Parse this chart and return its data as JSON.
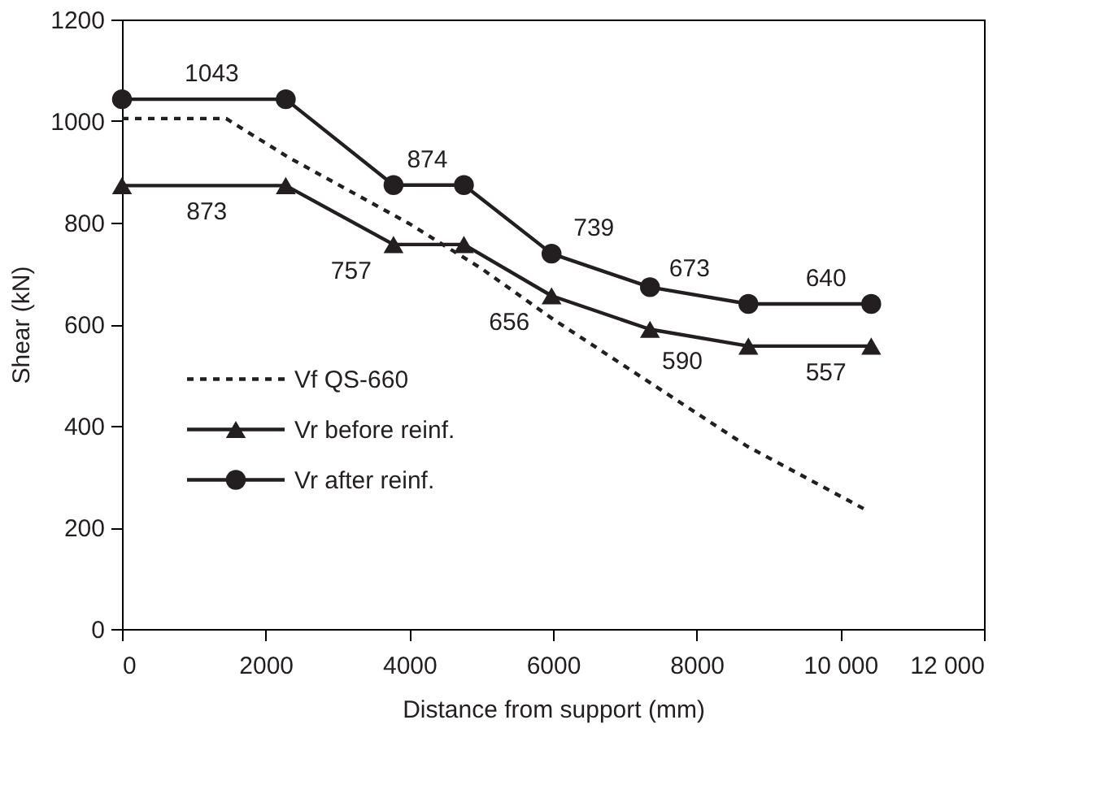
{
  "chart_data": {
    "type": "line",
    "xlabel": "Distance from support (mm)",
    "ylabel": "Shear (kN)",
    "xlim": [
      0,
      12000
    ],
    "ylim": [
      0,
      1200
    ],
    "xticks": [
      0,
      2000,
      4000,
      6000,
      8000,
      {
        "value": 10000,
        "label": "10 000"
      },
      {
        "value": 12000,
        "label": "12 000"
      }
    ],
    "yticks": [
      0,
      200,
      400,
      600,
      800,
      1000,
      1200
    ],
    "grid": false,
    "legend": "left",
    "series": [
      {
        "name": "Vf  QS-660",
        "color": "#231f20",
        "line_style": "dashed",
        "marker": "none",
        "x": [
          0,
          1450,
          2300,
          4000,
          5000,
          6000,
          7350,
          8700,
          10350
        ],
        "values": [
          1005,
          1005,
          930,
          798,
          710,
          610,
          485,
          360,
          235
        ]
      },
      {
        "name": "Vr before reinf.",
        "color": "#231f20",
        "line_style": "solid",
        "marker": "triangle",
        "x": [
          0,
          2280,
          3780,
          4760,
          5980,
          7350,
          8720,
          10430
        ],
        "values": [
          873,
          873,
          757,
          757,
          656,
          590,
          557,
          557
        ]
      },
      {
        "name": "Vr after reinf.",
        "color": "#231f20",
        "line_style": "solid",
        "marker": "circle",
        "x": [
          0,
          2280,
          3780,
          4760,
          5980,
          7350,
          8720,
          10430
        ],
        "values": [
          1043,
          1043,
          874,
          874,
          739,
          673,
          640,
          640
        ]
      }
    ],
    "annotations": [
      {
        "text": "1043",
        "x": 1250,
        "y": 1043
      },
      {
        "text": "873",
        "x": 1180,
        "y": 873
      },
      {
        "text": "874",
        "x": 4250,
        "y": 874
      },
      {
        "text": "757",
        "x": 3780,
        "y": 757
      },
      {
        "text": "739",
        "x": 5980,
        "y": 739
      },
      {
        "text": "656",
        "x": 5980,
        "y": 656
      },
      {
        "text": "673",
        "x": 7900,
        "y": 660
      },
      {
        "text": "590",
        "x": 7800,
        "y": 579
      },
      {
        "text": "640",
        "x": 9800,
        "y": 640
      },
      {
        "text": "557",
        "x": 9800,
        "y": 557
      }
    ]
  }
}
